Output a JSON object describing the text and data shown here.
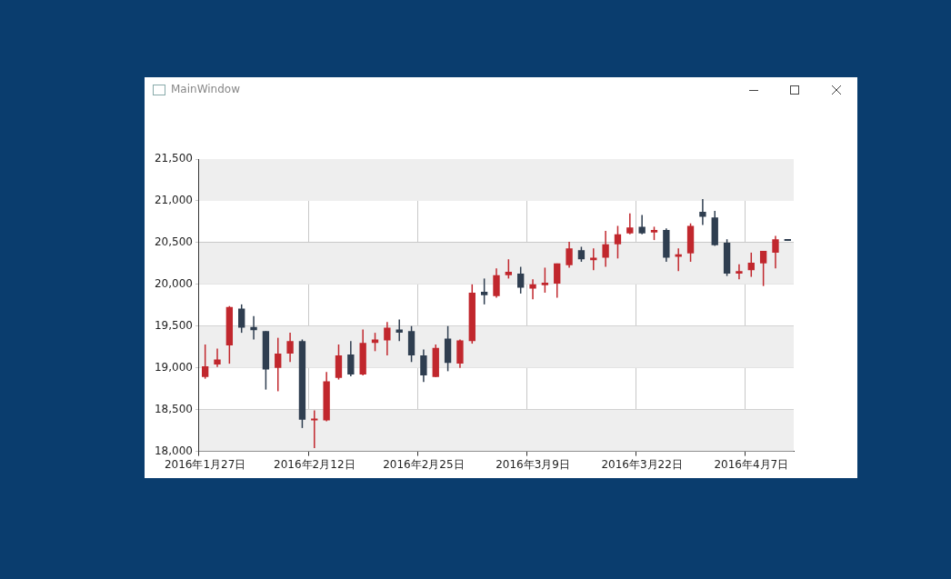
{
  "chart_data": {
    "type": "candlestick",
    "title": "MainWindow",
    "categories": [
      "2016年1月27日",
      null,
      null,
      null,
      null,
      null,
      null,
      null,
      null,
      "2016年2月12日",
      null,
      null,
      null,
      null,
      null,
      null,
      null,
      null,
      "2016年2月25日",
      null,
      null,
      null,
      null,
      null,
      null,
      null,
      null,
      "2016年3月9日",
      null,
      null,
      null,
      null,
      null,
      null,
      null,
      null,
      "2016年3月22日",
      null,
      null,
      null,
      null,
      null,
      null,
      null,
      null,
      "2016年4月7日",
      null,
      null,
      null
    ],
    "ohlc": [
      [
        18890,
        19280,
        18870,
        19020
      ],
      [
        19040,
        19230,
        19010,
        19100
      ],
      [
        19270,
        19740,
        19050,
        19730
      ],
      [
        19710,
        19760,
        19420,
        19480
      ],
      [
        19490,
        19620,
        19340,
        19450
      ],
      [
        19440,
        19440,
        18740,
        18980
      ],
      [
        19000,
        19360,
        18720,
        19170
      ],
      [
        19170,
        19420,
        19070,
        19320
      ],
      [
        19320,
        19340,
        18280,
        18380
      ],
      [
        18370,
        18490,
        18040,
        18380
      ],
      [
        18370,
        18950,
        18360,
        18840
      ],
      [
        18880,
        19280,
        18860,
        19150
      ],
      [
        19160,
        19320,
        18900,
        18920
      ],
      [
        18920,
        19460,
        18910,
        19300
      ],
      [
        19300,
        19420,
        19200,
        19340
      ],
      [
        19330,
        19550,
        19150,
        19480
      ],
      [
        19460,
        19580,
        19320,
        19420
      ],
      [
        19440,
        19500,
        19070,
        19150
      ],
      [
        19150,
        19220,
        18830,
        18910
      ],
      [
        18890,
        19280,
        18890,
        19240
      ],
      [
        19350,
        19500,
        18960,
        19060
      ],
      [
        19050,
        19340,
        19000,
        19330
      ],
      [
        19320,
        20000,
        19290,
        19900
      ],
      [
        19910,
        20070,
        19760,
        19870
      ],
      [
        19860,
        20190,
        19840,
        20110
      ],
      [
        20110,
        20300,
        20070,
        20150
      ],
      [
        20130,
        20210,
        19890,
        19960
      ],
      [
        19950,
        20060,
        19820,
        20000
      ],
      [
        19990,
        20200,
        19900,
        20020
      ],
      [
        20010,
        20250,
        19840,
        20250
      ],
      [
        20230,
        20510,
        20200,
        20430
      ],
      [
        20410,
        20450,
        20270,
        20300
      ],
      [
        20290,
        20430,
        20170,
        20320
      ],
      [
        20320,
        20640,
        20210,
        20480
      ],
      [
        20480,
        20700,
        20310,
        20600
      ],
      [
        20610,
        20850,
        20600,
        20680
      ],
      [
        20690,
        20830,
        20600,
        20610
      ],
      [
        20620,
        20690,
        20530,
        20650
      ],
      [
        20650,
        20670,
        20270,
        20320
      ],
      [
        20330,
        20430,
        20160,
        20360
      ],
      [
        20370,
        20730,
        20270,
        20700
      ],
      [
        20870,
        21020,
        20710,
        20810
      ],
      [
        20800,
        20880,
        20460,
        20470
      ],
      [
        20500,
        20540,
        20100,
        20130
      ],
      [
        20130,
        20240,
        20060,
        20160
      ],
      [
        20170,
        20380,
        20090,
        20260
      ],
      [
        20250,
        20400,
        19980,
        20400
      ],
      [
        20380,
        20580,
        20190,
        20540
      ],
      [
        20530,
        20530,
        20520,
        20520
      ]
    ],
    "colors": [
      "#c1272d",
      "#c1272d",
      "#c1272d",
      "#2f3e50",
      "#2f3e50",
      "#2f3e50",
      "#c1272d",
      "#c1272d",
      "#2f3e50",
      "#c1272d",
      "#c1272d",
      "#c1272d",
      "#2f3e50",
      "#c1272d",
      "#c1272d",
      "#c1272d",
      "#2f3e50",
      "#2f3e50",
      "#2f3e50",
      "#c1272d",
      "#2f3e50",
      "#c1272d",
      "#c1272d",
      "#2f3e50",
      "#c1272d",
      "#c1272d",
      "#2f3e50",
      "#c1272d",
      "#c1272d",
      "#c1272d",
      "#c1272d",
      "#2f3e50",
      "#c1272d",
      "#c1272d",
      "#c1272d",
      "#c1272d",
      "#2f3e50",
      "#c1272d",
      "#2f3e50",
      "#c1272d",
      "#c1272d",
      "#2f3e50",
      "#2f3e50",
      "#2f3e50",
      "#c1272d",
      "#c1272d",
      "#c1272d",
      "#c1272d",
      "#2f3e50"
    ],
    "ylim": [
      18000,
      21500
    ],
    "yticks": [
      {
        "value": 18000,
        "label": "18,000"
      },
      {
        "value": 18500,
        "label": "18,500"
      },
      {
        "value": 19000,
        "label": "19,000"
      },
      {
        "value": 19500,
        "label": "19,500"
      },
      {
        "value": 20000,
        "label": "20,000"
      },
      {
        "value": 20500,
        "label": "20,500"
      },
      {
        "value": 21000,
        "label": "21,000"
      },
      {
        "value": 21500,
        "label": "21,500"
      }
    ],
    "grid": true,
    "legend": false
  }
}
